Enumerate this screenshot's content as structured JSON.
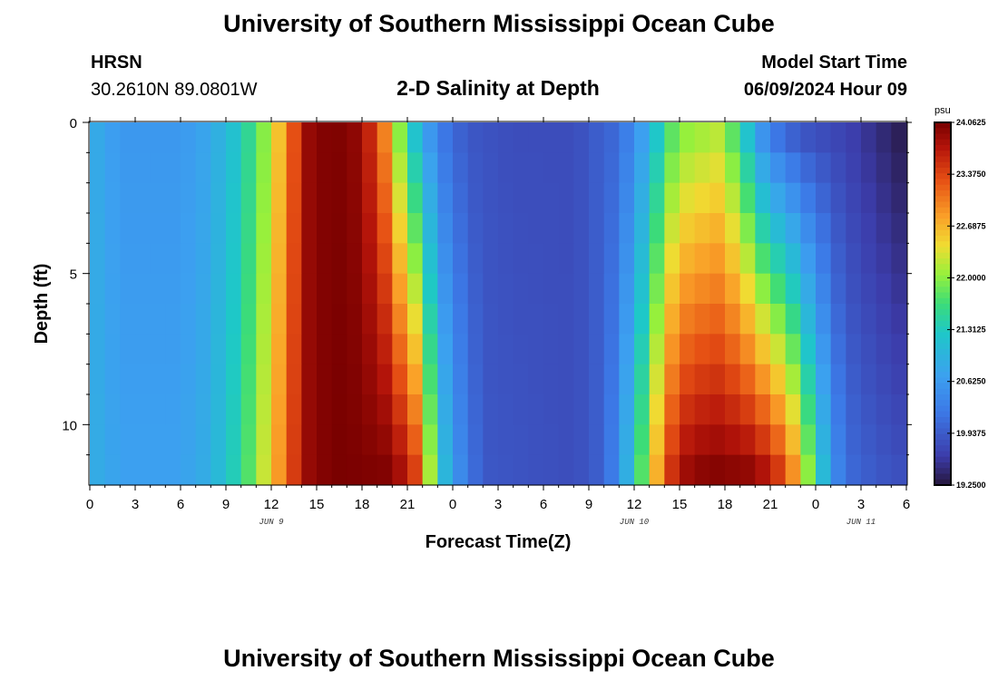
{
  "header": {
    "title": "University of Southern Mississippi Ocean Cube",
    "station": "HRSN",
    "coords": "30.2610N  89.0801W",
    "center_title": "2-D Salinity at Depth",
    "model_label": "Model Start Time",
    "model_time": "06/09/2024 Hour 09",
    "footer_title": "University of Southern Mississippi Ocean Cube"
  },
  "chart_data": {
    "type": "heatmap",
    "title": "2-D Salinity at Depth",
    "xlabel": "Forecast Time(Z)",
    "ylabel": "Depth (ft)",
    "x_range_hours": [
      0,
      54
    ],
    "y_range_ft": [
      0,
      12
    ],
    "x_ticks": [
      {
        "h": 0,
        "label": "0"
      },
      {
        "h": 3,
        "label": "3"
      },
      {
        "h": 6,
        "label": "6"
      },
      {
        "h": 9,
        "label": "9"
      },
      {
        "h": 12,
        "label": "12"
      },
      {
        "h": 15,
        "label": "15"
      },
      {
        "h": 18,
        "label": "18"
      },
      {
        "h": 21,
        "label": "21"
      },
      {
        "h": 24,
        "label": "0"
      },
      {
        "h": 27,
        "label": "3"
      },
      {
        "h": 30,
        "label": "6"
      },
      {
        "h": 33,
        "label": "9"
      },
      {
        "h": 36,
        "label": "12"
      },
      {
        "h": 39,
        "label": "15"
      },
      {
        "h": 42,
        "label": "18"
      },
      {
        "h": 45,
        "label": "21"
      },
      {
        "h": 48,
        "label": "0"
      },
      {
        "h": 51,
        "label": "3"
      },
      {
        "h": 54,
        "label": "6"
      }
    ],
    "day_labels": [
      {
        "h": 12,
        "label": "JUN 9"
      },
      {
        "h": 36,
        "label": "JUN 10"
      },
      {
        "h": 51,
        "label": "JUN 11"
      }
    ],
    "y_ticks": [
      {
        "ft": 0,
        "label": "0"
      },
      {
        "ft": 5,
        "label": "5"
      },
      {
        "ft": 10,
        "label": "10"
      }
    ],
    "colorbar": {
      "unit": "psu",
      "min": 19.25,
      "max": 24.0625,
      "tick_labels": [
        "24.0625",
        "23.3750",
        "22.6875",
        "22.0000",
        "21.3125",
        "20.6250",
        "19.9375",
        "19.2500"
      ]
    },
    "layers_ft": [
      0.5,
      1.5,
      2.5,
      3.5,
      4.5,
      5.5,
      6.5,
      7.5,
      8.5,
      9.5,
      10.5,
      11.5
    ],
    "shallow_profile": [
      {
        "h": 0,
        "v": 20.9
      },
      {
        "h": 2,
        "v": 20.6
      },
      {
        "h": 6,
        "v": 20.6
      },
      {
        "h": 8,
        "v": 20.8
      },
      {
        "h": 10,
        "v": 21.3
      },
      {
        "h": 12,
        "v": 22.2
      },
      {
        "h": 13,
        "v": 23.0
      },
      {
        "h": 14.5,
        "v": 23.9
      },
      {
        "h": 16,
        "v": 24.06
      },
      {
        "h": 18,
        "v": 23.9
      },
      {
        "h": 19.5,
        "v": 23.0
      },
      {
        "h": 20.5,
        "v": 22.0
      },
      {
        "h": 21.5,
        "v": 21.2
      },
      {
        "h": 23,
        "v": 20.3
      },
      {
        "h": 25,
        "v": 19.9
      },
      {
        "h": 28,
        "v": 19.8
      },
      {
        "h": 32,
        "v": 19.8
      },
      {
        "h": 35,
        "v": 20.1
      },
      {
        "h": 37,
        "v": 20.9
      },
      {
        "h": 38,
        "v": 21.6
      },
      {
        "h": 39,
        "v": 22.0
      },
      {
        "h": 41.5,
        "v": 22.2
      },
      {
        "h": 43,
        "v": 21.6
      },
      {
        "h": 44,
        "v": 20.8
      },
      {
        "h": 45,
        "v": 20.3
      },
      {
        "h": 47,
        "v": 19.9
      },
      {
        "h": 50,
        "v": 19.7
      },
      {
        "h": 52,
        "v": 19.5
      },
      {
        "h": 54,
        "v": 19.3
      }
    ],
    "deep_profile": [
      {
        "h": 0,
        "v": 20.9
      },
      {
        "h": 2,
        "v": 20.7
      },
      {
        "h": 6,
        "v": 20.7
      },
      {
        "h": 8,
        "v": 20.9
      },
      {
        "h": 10,
        "v": 21.5
      },
      {
        "h": 12,
        "v": 22.5
      },
      {
        "h": 13,
        "v": 23.2
      },
      {
        "h": 14.5,
        "v": 23.9
      },
      {
        "h": 16,
        "v": 24.06
      },
      {
        "h": 20,
        "v": 24.0
      },
      {
        "h": 21.5,
        "v": 23.4
      },
      {
        "h": 22.3,
        "v": 22.4
      },
      {
        "h": 23,
        "v": 21.4
      },
      {
        "h": 24,
        "v": 20.6
      },
      {
        "h": 26,
        "v": 19.9
      },
      {
        "h": 32,
        "v": 19.8
      },
      {
        "h": 34,
        "v": 20.0
      },
      {
        "h": 35,
        "v": 20.5
      },
      {
        "h": 36,
        "v": 21.3
      },
      {
        "h": 37,
        "v": 22.2
      },
      {
        "h": 38,
        "v": 23.2
      },
      {
        "h": 39,
        "v": 23.8
      },
      {
        "h": 41,
        "v": 24.0
      },
      {
        "h": 44,
        "v": 23.9
      },
      {
        "h": 46,
        "v": 23.3
      },
      {
        "h": 47,
        "v": 22.5
      },
      {
        "h": 48,
        "v": 21.5
      },
      {
        "h": 49,
        "v": 20.6
      },
      {
        "h": 50,
        "v": 20.1
      },
      {
        "h": 52,
        "v": 19.9
      },
      {
        "h": 54,
        "v": 19.8
      }
    ]
  }
}
